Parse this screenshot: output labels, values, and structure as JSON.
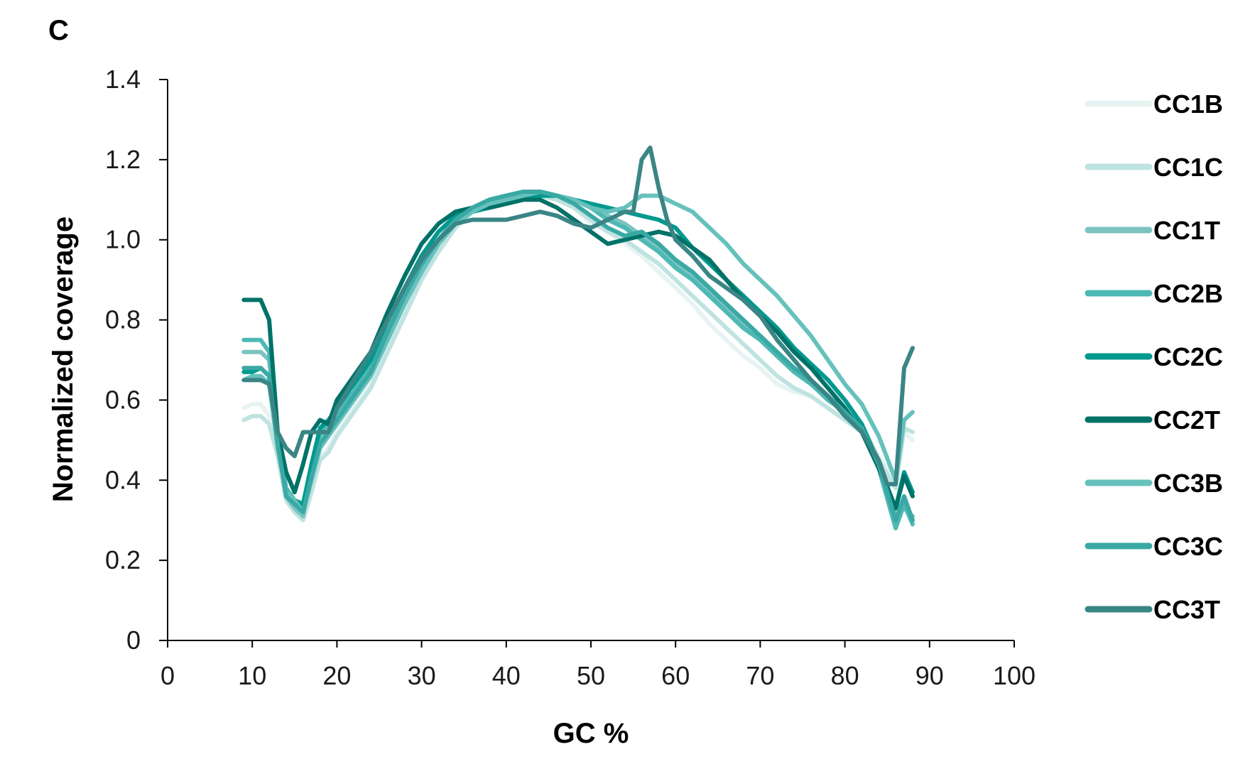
{
  "panel_label": "C",
  "colors": {
    "CC1B": "#e6f3f2",
    "CC1C": "#bfe3e0",
    "CC1T": "#7cc3c0",
    "CC2B": "#4db8b4",
    "CC2C": "#00998f",
    "CC2T": "#007268",
    "CC3B": "#66c1bc",
    "CC3C": "#3aa9a5",
    "CC3T": "#3a8585",
    "axis": "#000000"
  },
  "chart_data": {
    "type": "line",
    "title": "",
    "xlabel": "GC %",
    "ylabel": "Normalized coverage",
    "xlim": [
      0,
      100
    ],
    "ylim": [
      0,
      1.4
    ],
    "xticks": [
      "0",
      "10",
      "20",
      "30",
      "40",
      "50",
      "60",
      "70",
      "80",
      "90",
      "100"
    ],
    "yticks": [
      "0",
      "0.2",
      "0.4",
      "0.6",
      "0.8",
      "1.0",
      "1.2",
      "1.4"
    ],
    "grid": false,
    "legend_position": "right",
    "series": [
      {
        "name": "CC1B",
        "x": [
          9,
          10,
          11,
          12,
          13,
          14,
          15,
          16,
          17,
          18,
          19,
          20,
          22,
          24,
          26,
          28,
          30,
          32,
          34,
          36,
          38,
          40,
          42,
          44,
          46,
          48,
          50,
          52,
          54,
          56,
          58,
          60,
          62,
          64,
          66,
          68,
          70,
          72,
          74,
          76,
          78,
          80,
          82,
          84,
          86,
          87,
          88
        ],
        "y": [
          0.58,
          0.59,
          0.59,
          0.56,
          0.48,
          0.36,
          0.34,
          0.31,
          0.38,
          0.46,
          0.48,
          0.52,
          0.58,
          0.64,
          0.74,
          0.83,
          0.92,
          0.99,
          1.05,
          1.08,
          1.1,
          1.11,
          1.12,
          1.11,
          1.1,
          1.08,
          1.04,
          1.02,
          0.99,
          0.96,
          0.92,
          0.88,
          0.84,
          0.79,
          0.75,
          0.71,
          0.68,
          0.64,
          0.62,
          0.61,
          0.58,
          0.55,
          0.52,
          0.46,
          0.4,
          0.52,
          0.5
        ]
      },
      {
        "name": "CC1C",
        "x": [
          9,
          10,
          11,
          12,
          13,
          14,
          15,
          16,
          17,
          18,
          19,
          20,
          22,
          24,
          26,
          28,
          30,
          32,
          34,
          36,
          38,
          40,
          42,
          44,
          46,
          48,
          50,
          52,
          54,
          56,
          58,
          60,
          62,
          64,
          66,
          68,
          70,
          72,
          74,
          76,
          78,
          80,
          82,
          84,
          86,
          87,
          88
        ],
        "y": [
          0.55,
          0.56,
          0.56,
          0.54,
          0.46,
          0.35,
          0.32,
          0.3,
          0.37,
          0.45,
          0.47,
          0.51,
          0.57,
          0.63,
          0.72,
          0.81,
          0.9,
          0.97,
          1.03,
          1.07,
          1.09,
          1.1,
          1.11,
          1.11,
          1.1,
          1.08,
          1.05,
          1.02,
          1.0,
          0.97,
          0.94,
          0.9,
          0.86,
          0.82,
          0.78,
          0.74,
          0.7,
          0.66,
          0.63,
          0.61,
          0.58,
          0.55,
          0.52,
          0.45,
          0.38,
          0.53,
          0.52
        ]
      },
      {
        "name": "CC1T",
        "x": [
          9,
          10,
          11,
          12,
          13,
          14,
          15,
          16,
          17,
          18,
          19,
          20,
          22,
          24,
          26,
          28,
          30,
          32,
          34,
          36,
          38,
          40,
          42,
          44,
          46,
          48,
          50,
          52,
          54,
          56,
          58,
          60,
          62,
          64,
          66,
          68,
          70,
          72,
          74,
          76,
          78,
          80,
          82,
          84,
          86,
          87,
          88
        ],
        "y": [
          0.72,
          0.72,
          0.72,
          0.7,
          0.5,
          0.36,
          0.33,
          0.31,
          0.42,
          0.5,
          0.53,
          0.56,
          0.61,
          0.67,
          0.76,
          0.84,
          0.92,
          0.99,
          1.04,
          1.07,
          1.09,
          1.1,
          1.11,
          1.12,
          1.11,
          1.1,
          1.08,
          1.06,
          1.04,
          1.01,
          0.98,
          0.94,
          0.91,
          0.87,
          0.83,
          0.79,
          0.76,
          0.72,
          0.68,
          0.64,
          0.61,
          0.57,
          0.54,
          0.45,
          0.31,
          0.33,
          0.31
        ]
      },
      {
        "name": "CC2B",
        "x": [
          9,
          10,
          11,
          12,
          13,
          14,
          15,
          16,
          17,
          18,
          19,
          20,
          22,
          24,
          26,
          28,
          30,
          32,
          34,
          36,
          38,
          40,
          42,
          44,
          46,
          48,
          50,
          52,
          54,
          56,
          58,
          60,
          62,
          64,
          66,
          68,
          70,
          72,
          74,
          76,
          78,
          80,
          82,
          84,
          86,
          87,
          88
        ],
        "y": [
          0.75,
          0.75,
          0.75,
          0.72,
          0.51,
          0.38,
          0.35,
          0.33,
          0.43,
          0.52,
          0.54,
          0.57,
          0.62,
          0.69,
          0.78,
          0.86,
          0.94,
          1.0,
          1.05,
          1.08,
          1.1,
          1.11,
          1.12,
          1.12,
          1.11,
          1.1,
          1.08,
          1.05,
          1.03,
          1.0,
          0.97,
          0.93,
          0.9,
          0.86,
          0.82,
          0.78,
          0.75,
          0.71,
          0.67,
          0.64,
          0.6,
          0.57,
          0.53,
          0.43,
          0.28,
          0.34,
          0.29
        ]
      },
      {
        "name": "CC2C",
        "x": [
          9,
          10,
          11,
          12,
          13,
          14,
          15,
          16,
          17,
          18,
          19,
          20,
          22,
          24,
          26,
          28,
          30,
          32,
          34,
          36,
          38,
          40,
          42,
          44,
          46,
          48,
          50,
          52,
          54,
          56,
          58,
          60,
          62,
          64,
          66,
          68,
          70,
          72,
          74,
          76,
          78,
          80,
          82,
          84,
          86,
          87,
          88
        ],
        "y": [
          0.67,
          0.67,
          0.68,
          0.66,
          0.49,
          0.37,
          0.35,
          0.34,
          0.44,
          0.53,
          0.55,
          0.58,
          0.64,
          0.7,
          0.8,
          0.88,
          0.96,
          1.02,
          1.06,
          1.07,
          1.08,
          1.09,
          1.1,
          1.11,
          1.11,
          1.1,
          1.09,
          1.08,
          1.07,
          1.06,
          1.05,
          1.03,
          0.98,
          0.94,
          0.9,
          0.86,
          0.82,
          0.78,
          0.73,
          0.69,
          0.65,
          0.6,
          0.54,
          0.44,
          0.33,
          0.42,
          0.37
        ]
      },
      {
        "name": "CC2T",
        "x": [
          9,
          10,
          11,
          12,
          13,
          14,
          15,
          16,
          17,
          18,
          19,
          20,
          22,
          24,
          26,
          28,
          30,
          32,
          34,
          36,
          38,
          40,
          42,
          44,
          46,
          48,
          50,
          52,
          54,
          56,
          58,
          60,
          62,
          64,
          66,
          68,
          70,
          72,
          74,
          76,
          78,
          80,
          82,
          84,
          86,
          87,
          88
        ],
        "y": [
          0.85,
          0.85,
          0.85,
          0.8,
          0.52,
          0.42,
          0.37,
          0.44,
          0.52,
          0.55,
          0.54,
          0.6,
          0.66,
          0.72,
          0.82,
          0.91,
          0.99,
          1.04,
          1.07,
          1.08,
          1.08,
          1.09,
          1.1,
          1.1,
          1.08,
          1.05,
          1.02,
          0.99,
          1.0,
          1.01,
          1.02,
          1.01,
          0.98,
          0.95,
          0.9,
          0.85,
          0.81,
          0.77,
          0.72,
          0.68,
          0.63,
          0.58,
          0.52,
          0.43,
          0.33,
          0.41,
          0.36
        ]
      },
      {
        "name": "CC3B",
        "x": [
          9,
          10,
          11,
          12,
          13,
          14,
          15,
          16,
          17,
          18,
          19,
          20,
          22,
          24,
          26,
          28,
          30,
          32,
          34,
          36,
          38,
          40,
          42,
          44,
          46,
          48,
          50,
          52,
          54,
          56,
          58,
          60,
          62,
          64,
          66,
          68,
          70,
          72,
          74,
          76,
          78,
          80,
          82,
          84,
          86,
          87,
          88
        ],
        "y": [
          0.65,
          0.66,
          0.66,
          0.64,
          0.48,
          0.37,
          0.35,
          0.32,
          0.4,
          0.48,
          0.51,
          0.54,
          0.6,
          0.66,
          0.75,
          0.84,
          0.92,
          0.99,
          1.04,
          1.07,
          1.09,
          1.1,
          1.11,
          1.12,
          1.11,
          1.1,
          1.08,
          1.07,
          1.08,
          1.11,
          1.11,
          1.09,
          1.07,
          1.03,
          0.99,
          0.94,
          0.9,
          0.86,
          0.81,
          0.76,
          0.7,
          0.64,
          0.59,
          0.51,
          0.4,
          0.55,
          0.57
        ]
      },
      {
        "name": "CC3C",
        "x": [
          9,
          10,
          11,
          12,
          13,
          14,
          15,
          16,
          17,
          18,
          19,
          20,
          22,
          24,
          26,
          28,
          30,
          32,
          34,
          36,
          38,
          40,
          42,
          44,
          46,
          48,
          50,
          52,
          54,
          56,
          58,
          60,
          62,
          64,
          66,
          68,
          70,
          72,
          74,
          76,
          78,
          80,
          82,
          84,
          86,
          87,
          88
        ],
        "y": [
          0.68,
          0.68,
          0.68,
          0.66,
          0.49,
          0.36,
          0.34,
          0.32,
          0.41,
          0.49,
          0.52,
          0.55,
          0.61,
          0.67,
          0.77,
          0.86,
          0.94,
          1.0,
          1.05,
          1.08,
          1.1,
          1.11,
          1.12,
          1.12,
          1.11,
          1.09,
          1.06,
          1.03,
          1.01,
          1.02,
          0.99,
          0.95,
          0.92,
          0.88,
          0.84,
          0.8,
          0.76,
          0.72,
          0.68,
          0.65,
          0.61,
          0.57,
          0.53,
          0.44,
          0.3,
          0.36,
          0.3
        ]
      },
      {
        "name": "CC3T",
        "x": [
          9,
          10,
          11,
          12,
          13,
          14,
          15,
          16,
          17,
          18,
          19,
          20,
          22,
          24,
          26,
          28,
          30,
          32,
          34,
          36,
          38,
          40,
          42,
          44,
          46,
          48,
          50,
          52,
          54,
          55,
          56,
          57,
          58,
          59,
          60,
          62,
          64,
          66,
          68,
          70,
          72,
          74,
          76,
          78,
          80,
          82,
          84,
          85,
          86,
          87,
          88
        ],
        "y": [
          0.65,
          0.65,
          0.65,
          0.64,
          0.52,
          0.48,
          0.46,
          0.52,
          0.52,
          0.52,
          0.52,
          0.58,
          0.65,
          0.72,
          0.8,
          0.88,
          0.95,
          1.0,
          1.04,
          1.05,
          1.05,
          1.05,
          1.06,
          1.07,
          1.06,
          1.04,
          1.03,
          1.05,
          1.07,
          1.07,
          1.2,
          1.23,
          1.13,
          1.05,
          1.0,
          0.96,
          0.91,
          0.88,
          0.85,
          0.81,
          0.75,
          0.7,
          0.65,
          0.61,
          0.56,
          0.52,
          0.45,
          0.39,
          0.39,
          0.68,
          0.73
        ]
      }
    ]
  }
}
